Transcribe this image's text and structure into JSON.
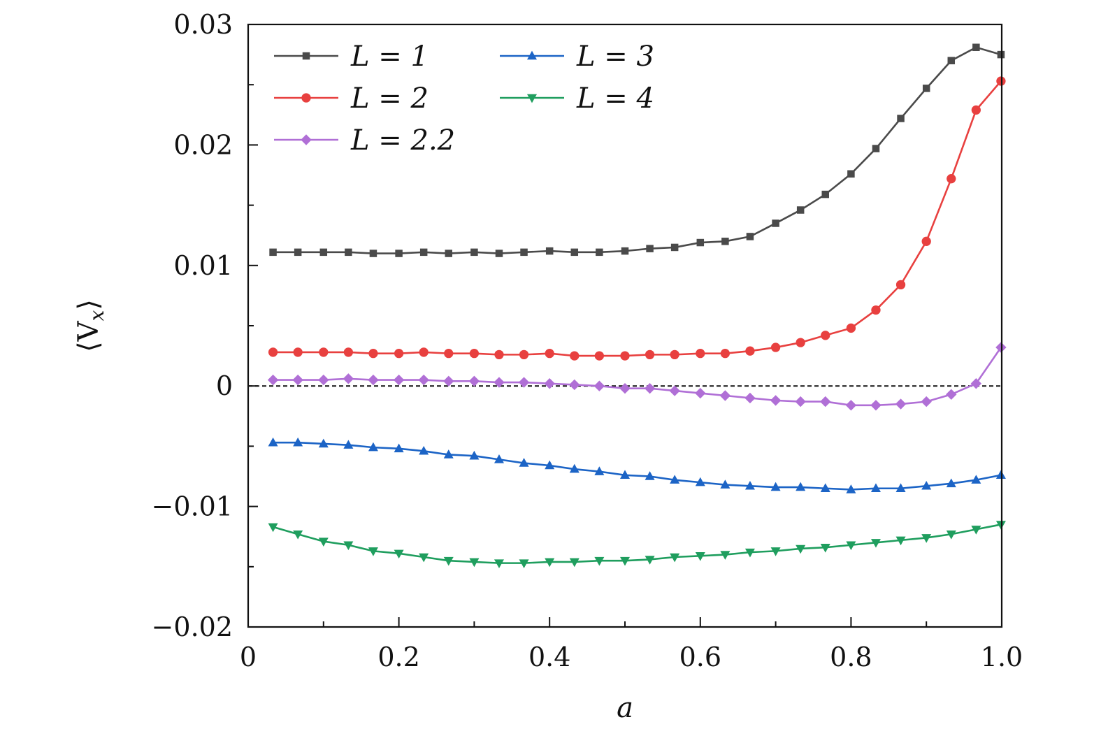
{
  "chart_data": {
    "type": "line",
    "xlabel": "a",
    "ylabel": "⟨V",
    "ylabel_sub": "x",
    "ylabel_close": "⟩",
    "xlim": [
      0,
      1.0
    ],
    "ylim": [
      -0.02,
      0.03
    ],
    "xticks": [
      0,
      0.2,
      0.4,
      0.6,
      0.8,
      1.0
    ],
    "xtick_labels": [
      "0",
      "0.2",
      "0.4",
      "0.6",
      "0.8",
      "1.0"
    ],
    "yticks": [
      -0.02,
      -0.01,
      0,
      0.01,
      0.02,
      0.03
    ],
    "ytick_labels": [
      "−0.02",
      "−0.01",
      "0",
      "0.01",
      "0.02",
      "0.03"
    ],
    "reference_line": {
      "y": 0,
      "style": "dashed"
    },
    "legend_position": "top-left",
    "x": [
      0.033,
      0.066,
      0.1,
      0.133,
      0.166,
      0.2,
      0.233,
      0.266,
      0.3,
      0.333,
      0.366,
      0.4,
      0.433,
      0.466,
      0.5,
      0.533,
      0.566,
      0.6,
      0.633,
      0.666,
      0.7,
      0.733,
      0.766,
      0.8,
      0.833,
      0.866,
      0.9,
      0.933,
      0.966,
      0.999
    ],
    "series": [
      {
        "name": "L = 1",
        "color": "#4a4a4a",
        "marker": "square",
        "values": [
          0.0111,
          0.0111,
          0.0111,
          0.0111,
          0.011,
          0.011,
          0.0111,
          0.011,
          0.0111,
          0.011,
          0.0111,
          0.0112,
          0.0111,
          0.0111,
          0.0112,
          0.0114,
          0.0115,
          0.0119,
          0.012,
          0.0124,
          0.0135,
          0.0146,
          0.0159,
          0.0176,
          0.0197,
          0.0222,
          0.0247,
          0.027,
          0.0281,
          0.0275
        ]
      },
      {
        "name": "L = 2",
        "color": "#e8403f",
        "marker": "circle",
        "values": [
          0.0028,
          0.0028,
          0.0028,
          0.0028,
          0.0027,
          0.0027,
          0.0028,
          0.0027,
          0.0027,
          0.0026,
          0.0026,
          0.0027,
          0.0025,
          0.0025,
          0.0025,
          0.0026,
          0.0026,
          0.0027,
          0.0027,
          0.0029,
          0.0032,
          0.0036,
          0.0042,
          0.0048,
          0.0063,
          0.0084,
          0.012,
          0.0172,
          0.0229,
          0.0253
        ]
      },
      {
        "name": "L = 2.2",
        "color": "#b06fd6",
        "marker": "diamond",
        "values": [
          0.0005,
          0.0005,
          0.0005,
          0.0006,
          0.0005,
          0.0005,
          0.0005,
          0.0004,
          0.0004,
          0.0003,
          0.0003,
          0.0002,
          0.0001,
          0.0,
          -0.0002,
          -0.0002,
          -0.0004,
          -0.0006,
          -0.0008,
          -0.001,
          -0.0012,
          -0.0013,
          -0.0013,
          -0.0016,
          -0.0016,
          -0.0015,
          -0.0013,
          -0.0007,
          0.0002,
          0.0032
        ]
      },
      {
        "name": "L = 3",
        "color": "#1c64c6",
        "marker": "triangle-up",
        "values": [
          -0.0047,
          -0.0047,
          -0.0048,
          -0.0049,
          -0.0051,
          -0.0052,
          -0.0054,
          -0.0057,
          -0.0058,
          -0.0061,
          -0.0064,
          -0.0066,
          -0.0069,
          -0.0071,
          -0.0074,
          -0.0075,
          -0.0078,
          -0.008,
          -0.0082,
          -0.0083,
          -0.0084,
          -0.0084,
          -0.0085,
          -0.0086,
          -0.0085,
          -0.0085,
          -0.0083,
          -0.0081,
          -0.0078,
          -0.0074
        ]
      },
      {
        "name": "L = 4",
        "color": "#1f9e5e",
        "marker": "triangle-down",
        "values": [
          -0.0117,
          -0.0123,
          -0.0129,
          -0.0132,
          -0.0137,
          -0.0139,
          -0.0142,
          -0.0145,
          -0.0146,
          -0.0147,
          -0.0147,
          -0.0146,
          -0.0146,
          -0.0145,
          -0.0145,
          -0.0144,
          -0.0142,
          -0.0141,
          -0.014,
          -0.0138,
          -0.0137,
          -0.0135,
          -0.0134,
          -0.0132,
          -0.013,
          -0.0128,
          -0.0126,
          -0.0123,
          -0.0119,
          -0.0115
        ]
      }
    ]
  }
}
